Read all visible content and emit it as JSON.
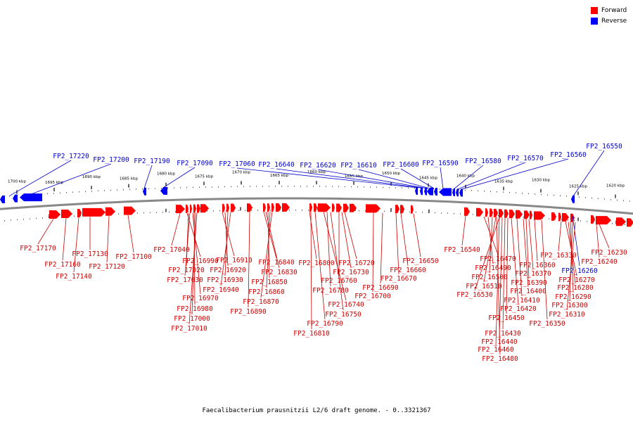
{
  "caption": "Faecalibacterium prausnitzii L2/6 draft genome. - 0..3321367",
  "legend": [
    {
      "label": "Forward",
      "color": "#ff0000"
    },
    {
      "label": "Reverse",
      "color": "#0000ff"
    }
  ],
  "colors": {
    "forward": "#ff0000",
    "reverse": "#0000ff",
    "backbone": "#888888",
    "label_forward": "#cc0000",
    "label_reverse": "#0000cc"
  },
  "scale_ticks": [
    "1700 kbp",
    "1695 kbp",
    "1690 kbp",
    "1685 kbp",
    "1680 kbp",
    "1675 kbp",
    "1670 kbp",
    "1665 kbp",
    "1660 kbp",
    "1655 kbp",
    "1650 kbp",
    "1645 kbp",
    "1640 kbp",
    "1635 kbp",
    "1630 kbp",
    "1625 kbp",
    "1620 kbp"
  ],
  "reverse_genes": [
    "FP2_17220",
    "FP2_17200",
    "FP2_17190",
    "FP2_17090",
    "FP2_17060",
    "FP2_16640",
    "FP2_16620",
    "FP2_16610",
    "FP2_16600",
    "FP2_16590",
    "FP2_16580",
    "FP2_16570",
    "FP2_16560",
    "FP2_16550",
    "FP2_16260"
  ],
  "forward_genes": [
    "FP2_17170",
    "FP2_17160",
    "FP2_17140",
    "FP2_17130",
    "FP2_17120",
    "FP2_17100",
    "FP2_17040",
    "FP2_16990",
    "FP2_17020",
    "FP2_17030",
    "FP2_16970",
    "FP2_16980",
    "FP2_17000",
    "FP2_17010",
    "FP2_16910",
    "FP2_16920",
    "FP2_16930",
    "FP2_16940",
    "FP2_16840",
    "FP2_16830",
    "FP2_16850",
    "FP2_16860",
    "FP2_16870",
    "FP2_16890",
    "FP2_16800",
    "FP2_16720",
    "FP2_16730",
    "FP2_16760",
    "FP2_16780",
    "FP2_16740",
    "FP2_16750",
    "FP2_16790",
    "FP2_16810",
    "FP2_16650",
    "FP2_16660",
    "FP2_16670",
    "FP2_16690",
    "FP2_16700",
    "FP2_16540",
    "FP2_16470",
    "FP2_16490",
    "FP2_16500",
    "FP2_16510",
    "FP2_16530",
    "FP2_16360",
    "FP2_16370",
    "FP2_16390",
    "FP2_16400",
    "FP2_16410",
    "FP2_16420",
    "FP2_16450",
    "FP2_16430",
    "FP2_16440",
    "FP2_16460",
    "FP2_16480",
    "FP2_16350",
    "FP2_16330",
    "FP2_16230",
    "FP2_16240",
    "FP2_16270",
    "FP2_16280",
    "FP2_16290",
    "FP2_16300",
    "FP2_16310"
  ]
}
